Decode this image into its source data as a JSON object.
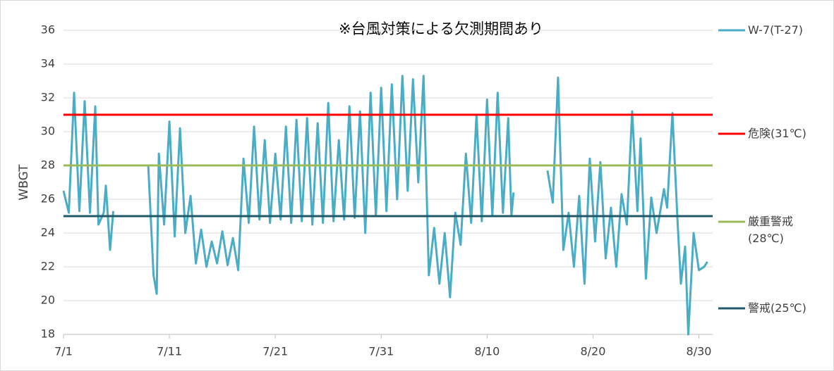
{
  "chart_data": {
    "type": "line",
    "title": "※台風対策による欠測期間あり",
    "ylabel": "WBGT",
    "xlim": [
      0,
      61.3
    ],
    "ylim": [
      18,
      36
    ],
    "xticks": [
      {
        "value": 0,
        "label": "7/1"
      },
      {
        "value": 10,
        "label": "7/11"
      },
      {
        "value": 20,
        "label": "7/21"
      },
      {
        "value": 30,
        "label": "7/31"
      },
      {
        "value": 40,
        "label": "8/10"
      },
      {
        "value": 50,
        "label": "8/20"
      },
      {
        "value": 60,
        "label": "8/30"
      }
    ],
    "yticks": [
      18,
      20,
      22,
      24,
      26,
      28,
      30,
      32,
      34,
      36
    ],
    "grid": true,
    "legend": "right",
    "series": [
      {
        "name": "W-7(T-27)",
        "color": "#4bacc6",
        "x": [
          0,
          0.5,
          1,
          1.5,
          2,
          2.5,
          3,
          3.3,
          3.8,
          4,
          4.4,
          4.7,
          5,
          8,
          8.5,
          8.8,
          9,
          9.5,
          10,
          10.5,
          11,
          11.5,
          12,
          12.5,
          13,
          13.5,
          14,
          14.5,
          15,
          15.5,
          16,
          16.5,
          17,
          17.5,
          18,
          18.5,
          19,
          19.5,
          20,
          20.5,
          21,
          21.5,
          22,
          22.5,
          23,
          23.5,
          24,
          24.5,
          25,
          25.5,
          26,
          26.5,
          27,
          27.5,
          28,
          28.5,
          29,
          29.5,
          30,
          30.5,
          31,
          31.5,
          32,
          32.5,
          33,
          33.5,
          34,
          34.5,
          35,
          35.5,
          36,
          36.5,
          37,
          37.5,
          38,
          38.5,
          39,
          39.5,
          40,
          40.5,
          41,
          41.5,
          42,
          42.3,
          42.5,
          43,
          45.7,
          46.2,
          46.7,
          47.2,
          47.7,
          48.2,
          48.7,
          49.2,
          49.7,
          50.2,
          50.7,
          51.2,
          51.7,
          52.2,
          52.7,
          53.2,
          53.7,
          54.2,
          54.5,
          55,
          55.5,
          56,
          56.7,
          57,
          57.5,
          58,
          58.3,
          58.7,
          59,
          59.5,
          60,
          60.5,
          60.8
        ],
        "values": [
          26.5,
          25.2,
          32.3,
          25.3,
          31.8,
          25.2,
          31.5,
          24.5,
          25.2,
          26.8,
          23.0,
          25.3,
          null,
          28.0,
          21.5,
          20.4,
          28.7,
          24.5,
          30.6,
          23.8,
          30.2,
          24.0,
          26.2,
          22.2,
          24.2,
          22.0,
          23.5,
          22.2,
          24.1,
          22.1,
          23.7,
          21.8,
          28.4,
          24.6,
          30.3,
          24.8,
          29.5,
          24.6,
          28.7,
          24.8,
          30.3,
          24.6,
          30.7,
          24.7,
          30.8,
          24.5,
          30.5,
          24.6,
          31.7,
          24.7,
          29.5,
          24.8,
          31.5,
          24.9,
          31.2,
          24.0,
          32.3,
          25.0,
          32.6,
          25.3,
          32.8,
          26.0,
          33.3,
          26.5,
          33.1,
          27.0,
          33.3,
          21.5,
          24.3,
          21.0,
          24.0,
          20.2,
          25.2,
          23.3,
          28.7,
          24.6,
          31.0,
          24.7,
          31.9,
          25.0,
          32.3,
          25.2,
          30.8,
          25.0,
          26.4,
          null,
          27.7,
          25.8,
          33.2,
          23.0,
          25.2,
          22.0,
          26.2,
          21.0,
          28.4,
          23.5,
          28.2,
          22.5,
          25.5,
          22.0,
          26.3,
          24.5,
          31.2,
          25.3,
          29.6,
          21.3,
          26.1,
          24.0,
          26.6,
          25.5,
          31.1,
          24.5,
          21.0,
          23.2,
          18.0,
          24.0,
          21.8,
          22.0,
          22.3
        ]
      },
      {
        "name": "危険(31℃)",
        "color": "#ff0000",
        "x": [
          0,
          61.3
        ],
        "values": [
          31,
          31
        ]
      },
      {
        "name": "厳重警戒(28℃)",
        "color": "#9bbb59",
        "x": [
          0,
          61.3
        ],
        "values": [
          28,
          28
        ]
      },
      {
        "name": "警戒(25℃)",
        "color": "#215968",
        "x": [
          0,
          61.3
        ],
        "values": [
          25,
          25
        ]
      }
    ]
  }
}
